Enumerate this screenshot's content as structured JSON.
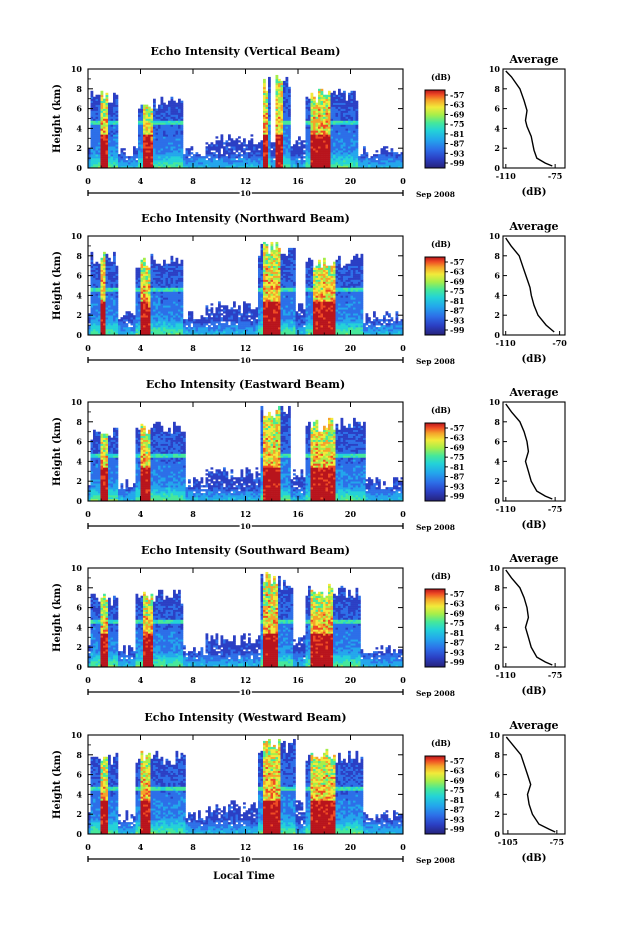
{
  "figure": {
    "xlabel": "Local Time",
    "date_label": "Sep 2008",
    "day_label": "10",
    "colorbar_unit": "(dB)",
    "colorbar_ticks": [
      "-57",
      "-63",
      "-69",
      "-75",
      "-81",
      "-87",
      "-93",
      "-99"
    ],
    "colormap": [
      "#26227a",
      "#2b3fc4",
      "#2d6fe8",
      "#23a6ec",
      "#23d2d8",
      "#46e89a",
      "#a6ee4a",
      "#f2ea3a",
      "#f5a32a",
      "#ef4b24",
      "#b8141c"
    ],
    "profile_title": "Average",
    "profile_xlabel": "(dB)"
  },
  "chart_data": [
    {
      "type": "heatmap",
      "title": "Echo Intensity (Vertical Beam)",
      "ylabel": "Height (km)",
      "xlabel": "Local Time",
      "xticks": [
        "0",
        "4",
        "8",
        "12",
        "16",
        "20",
        "0"
      ],
      "xlim": [
        0,
        24
      ],
      "yticks": [
        "0",
        "2",
        "4",
        "6",
        "8",
        "10"
      ],
      "ylim": [
        0,
        10
      ],
      "zlim": [
        -99,
        -57
      ],
      "events": [
        {
          "t0": 0.2,
          "t1": 2.3,
          "top": 7.8,
          "core": [
            0.9,
            1.5
          ]
        },
        {
          "t0": 3.8,
          "t1": 7.3,
          "top": 7.2,
          "core": [
            4.2,
            5.0
          ]
        },
        {
          "t0": 13.3,
          "t1": 13.9,
          "top": 9.5,
          "core": [
            13.4,
            13.8
          ]
        },
        {
          "t0": 14.2,
          "t1": 15.4,
          "top": 10.0,
          "core": [
            14.3,
            14.9
          ]
        },
        {
          "t0": 16.6,
          "t1": 20.6,
          "top": 8.0,
          "core": [
            17.0,
            18.4
          ]
        }
      ],
      "profile": {
        "title": "Average",
        "xticks": [
          "-110",
          "-75"
        ],
        "xlim": [
          -112,
          -68
        ],
        "x": [
          -110,
          -106,
          -100,
          -97,
          -95,
          -96,
          -95,
          -92,
          -91,
          -90,
          -88,
          -82,
          -77
        ],
        "y": [
          9.8,
          9.2,
          8.0,
          6.8,
          5.8,
          4.8,
          4.2,
          3.2,
          2.5,
          1.8,
          1.0,
          0.5,
          0.2
        ]
      }
    },
    {
      "type": "heatmap",
      "title": "Echo Intensity (Northward Beam)",
      "ylabel": "Height (km)",
      "xlabel": "Local Time",
      "xticks": [
        "0",
        "4",
        "8",
        "12",
        "16",
        "20",
        "0"
      ],
      "xlim": [
        0,
        24
      ],
      "yticks": [
        "0",
        "2",
        "4",
        "6",
        "8",
        "10"
      ],
      "ylim": [
        0,
        10
      ],
      "zlim": [
        -99,
        -57
      ],
      "events": [
        {
          "t0": 0.2,
          "t1": 2.3,
          "top": 8.5,
          "core": [
            0.9,
            1.4
          ]
        },
        {
          "t0": 3.6,
          "t1": 7.3,
          "top": 8.2,
          "core": [
            4.0,
            4.8
          ]
        },
        {
          "t0": 13.0,
          "t1": 15.8,
          "top": 9.5,
          "core": [
            13.3,
            14.6
          ]
        },
        {
          "t0": 16.6,
          "t1": 21.0,
          "top": 8.2,
          "core": [
            17.2,
            18.8
          ]
        }
      ],
      "profile": {
        "title": "Average",
        "xticks": [
          "-110",
          "-70"
        ],
        "xlim": [
          -112,
          -66
        ],
        "x": [
          -110,
          -106,
          -100,
          -97,
          -94,
          -92,
          -91,
          -89,
          -86,
          -80,
          -74
        ],
        "y": [
          9.8,
          9.0,
          8.0,
          6.8,
          5.6,
          4.8,
          4.0,
          3.0,
          2.0,
          1.0,
          0.3
        ]
      }
    },
    {
      "type": "heatmap",
      "title": "Echo Intensity (Eastward Beam)",
      "ylabel": "Height (km)",
      "xlabel": "Local Time",
      "xticks": [
        "0",
        "4",
        "8",
        "12",
        "16",
        "20",
        "0"
      ],
      "xlim": [
        0,
        24
      ],
      "yticks": [
        "0",
        "2",
        "4",
        "6",
        "8",
        "10"
      ],
      "ylim": [
        0,
        10
      ],
      "zlim": [
        -99,
        -57
      ],
      "events": [
        {
          "t0": 0.2,
          "t1": 2.3,
          "top": 7.6,
          "core": [
            0.9,
            1.5
          ]
        },
        {
          "t0": 3.6,
          "t1": 7.4,
          "top": 8.0,
          "core": [
            4.0,
            4.8
          ]
        },
        {
          "t0": 13.2,
          "t1": 15.4,
          "top": 9.7,
          "core": [
            13.4,
            14.6
          ]
        },
        {
          "t0": 16.6,
          "t1": 21.2,
          "top": 8.5,
          "core": [
            17.0,
            18.8
          ]
        }
      ],
      "profile": {
        "title": "Average",
        "xticks": [
          "-110",
          "-75"
        ],
        "xlim": [
          -112,
          -68
        ],
        "x": [
          -110,
          -106,
          -100,
          -97,
          -95,
          -94,
          -96,
          -94,
          -92,
          -88,
          -82,
          -77
        ],
        "y": [
          9.8,
          9.0,
          8.0,
          7.0,
          6.0,
          5.0,
          4.0,
          3.0,
          2.0,
          1.0,
          0.5,
          0.2
        ]
      }
    },
    {
      "type": "heatmap",
      "title": "Echo Intensity (Southward Beam)",
      "ylabel": "Height (km)",
      "xlabel": "Local Time",
      "xticks": [
        "0",
        "4",
        "8",
        "12",
        "16",
        "20",
        "0"
      ],
      "xlim": [
        0,
        24
      ],
      "yticks": [
        "0",
        "2",
        "4",
        "6",
        "8",
        "10"
      ],
      "ylim": [
        0,
        10
      ],
      "zlim": [
        -99,
        -57
      ],
      "events": [
        {
          "t0": 0.2,
          "t1": 2.3,
          "top": 7.4,
          "core": [
            0.9,
            1.5
          ]
        },
        {
          "t0": 3.6,
          "t1": 7.3,
          "top": 7.8,
          "core": [
            4.1,
            4.9
          ]
        },
        {
          "t0": 13.1,
          "t1": 15.6,
          "top": 9.6,
          "core": [
            13.3,
            14.4
          ]
        },
        {
          "t0": 16.6,
          "t1": 20.8,
          "top": 8.4,
          "core": [
            17.0,
            18.6
          ]
        }
      ],
      "profile": {
        "title": "Average",
        "xticks": [
          "-110",
          "-75"
        ],
        "xlim": [
          -112,
          -68
        ],
        "x": [
          -110,
          -106,
          -100,
          -97,
          -95,
          -94,
          -96,
          -94,
          -92,
          -88,
          -82,
          -77
        ],
        "y": [
          9.8,
          9.0,
          8.0,
          7.0,
          6.0,
          5.0,
          4.0,
          3.0,
          2.0,
          1.0,
          0.5,
          0.2
        ]
      }
    },
    {
      "type": "heatmap",
      "title": "Echo Intensity (Westward Beam)",
      "ylabel": "Height (km)",
      "xlabel": "Local Time",
      "xticks": [
        "0",
        "4",
        "8",
        "12",
        "16",
        "20",
        "0"
      ],
      "xlim": [
        0,
        24
      ],
      "yticks": [
        "0",
        "2",
        "4",
        "6",
        "8",
        "10"
      ],
      "ylim": [
        0,
        10
      ],
      "zlim": [
        -99,
        -57
      ],
      "events": [
        {
          "t0": 0.2,
          "t1": 2.3,
          "top": 8.6,
          "core": [
            0.9,
            1.5
          ]
        },
        {
          "t0": 3.6,
          "t1": 7.4,
          "top": 8.4,
          "core": [
            4.0,
            4.8
          ]
        },
        {
          "t0": 13.0,
          "t1": 15.8,
          "top": 9.7,
          "core": [
            13.3,
            14.6
          ]
        },
        {
          "t0": 16.6,
          "t1": 21.0,
          "top": 8.6,
          "core": [
            17.0,
            18.8
          ]
        }
      ],
      "profile": {
        "title": "Average",
        "xticks": [
          "-105",
          "-75"
        ],
        "xlim": [
          -108,
          -70
        ],
        "x": [
          -106,
          -102,
          -97,
          -95,
          -93,
          -91,
          -93,
          -92,
          -90,
          -86,
          -80,
          -76
        ],
        "y": [
          9.8,
          9.0,
          8.0,
          7.0,
          6.0,
          5.0,
          4.0,
          3.0,
          2.0,
          1.0,
          0.5,
          0.2
        ]
      }
    }
  ]
}
